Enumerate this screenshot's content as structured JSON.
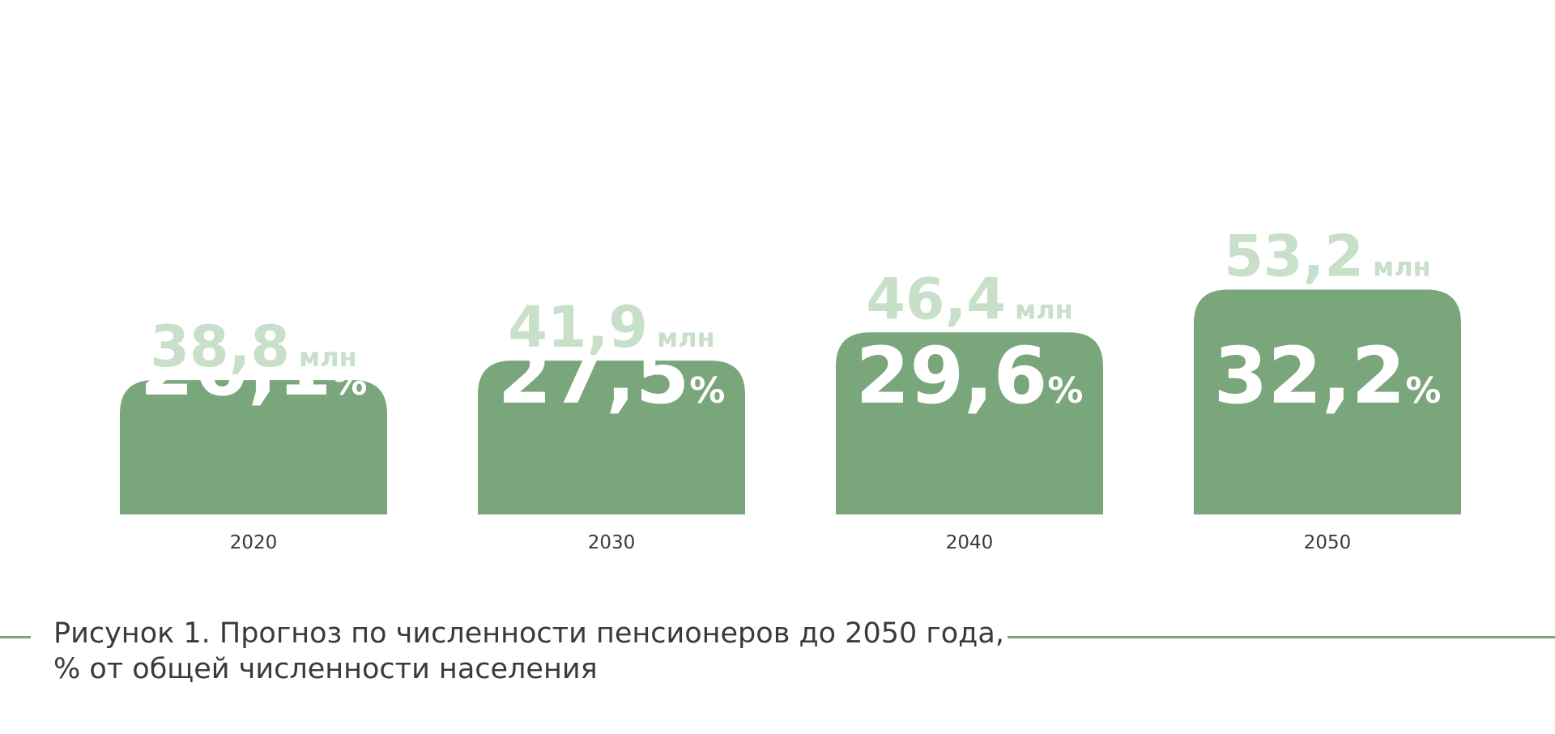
{
  "chart_data": {
    "type": "bar",
    "categories": [
      "2020",
      "2030",
      "2040",
      "2050"
    ],
    "series": [
      {
        "values": [
          26.1,
          27.5,
          29.6,
          32.2
        ],
        "labels": [
          "26,1",
          "27,5",
          "29,6",
          "32,2"
        ],
        "unit": "%"
      },
      {
        "values": [
          38.8,
          41.9,
          46.4,
          53.2
        ],
        "labels": [
          "38,8",
          "41,9",
          "46,4",
          "53,2"
        ],
        "unit": "млн"
      }
    ],
    "ylim": [
      0,
      53.2
    ],
    "grid": false,
    "legend": "none"
  },
  "caption": {
    "line1": "Рисунок 1. Прогноз по численности пенсионеров до 2050 года,",
    "line2": "% от общей численности населения"
  },
  "colors": {
    "bar": "#7aa67c",
    "bar_text": "#ffffff",
    "value_label": "#c8dfc9",
    "axis_text": "#3a3a3a",
    "caption_line": "#7aa67c"
  }
}
